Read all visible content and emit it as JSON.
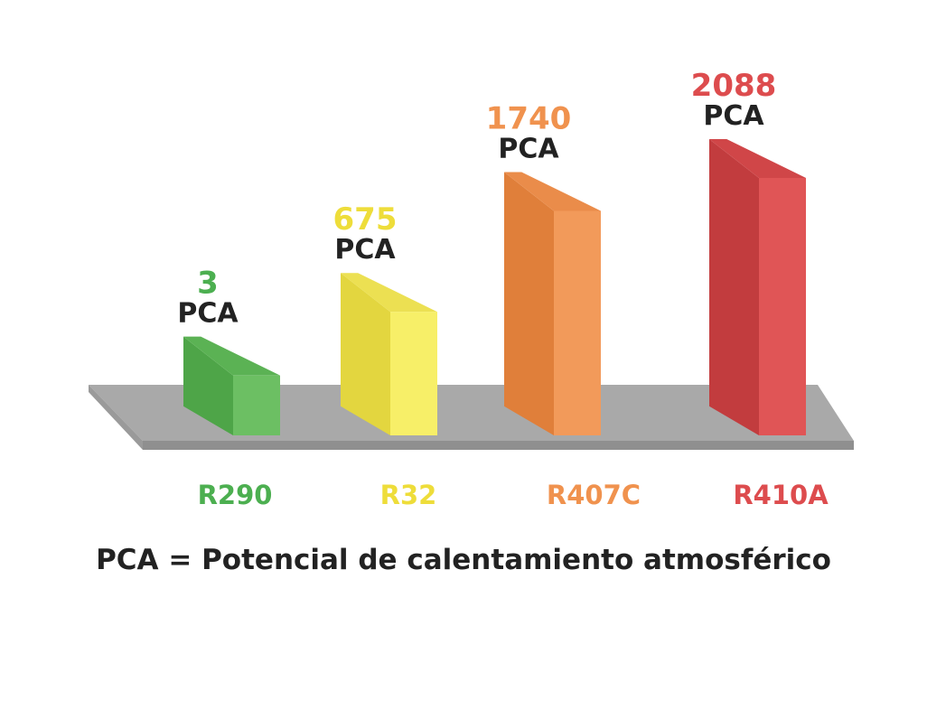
{
  "chart_data": {
    "type": "bar",
    "categories": [
      "R290",
      "R32",
      "R407C",
      "R410A"
    ],
    "values": [
      3,
      675,
      1740,
      2088
    ],
    "value_unit": "PCA",
    "colors": {
      "R290": {
        "front": "#6cbf63",
        "side": "#4ea548",
        "top": "#5bb254",
        "text": "#4caf50"
      },
      "R32": {
        "front": "#f7ef68",
        "side": "#e3d63f",
        "top": "#ece052",
        "text": "#eedd3a"
      },
      "R407C": {
        "front": "#f29a5a",
        "side": "#e07f3a",
        "top": "#ea8c4a",
        "text": "#f0924e"
      },
      "R410A": {
        "front": "#e05556",
        "side": "#c23c3e",
        "top": "#d04648",
        "text": "#dd4c4e"
      }
    },
    "base_color": "#a9a9a9"
  },
  "footnote": "PCA = Potencial de calentamiento atmosférico"
}
